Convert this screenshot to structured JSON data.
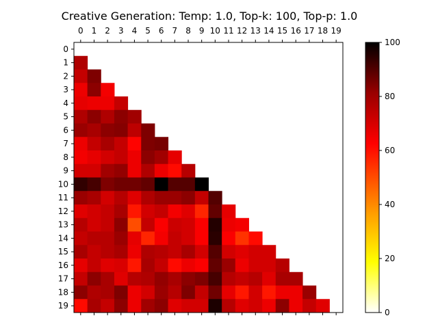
{
  "chart_data": {
    "type": "heatmap",
    "title": "Creative Generation: Temp: 1.0, Top-k: 100, Top-p: 1.0",
    "xlabel": "",
    "ylabel": "",
    "x_categories": [
      "0",
      "1",
      "2",
      "3",
      "4",
      "5",
      "6",
      "7",
      "8",
      "9",
      "10",
      "11",
      "12",
      "13",
      "14",
      "15",
      "16",
      "17",
      "18",
      "19"
    ],
    "y_categories": [
      "0",
      "1",
      "2",
      "3",
      "4",
      "5",
      "6",
      "7",
      "8",
      "9",
      "10",
      "11",
      "12",
      "13",
      "14",
      "15",
      "16",
      "17",
      "18",
      "19"
    ],
    "lower_triangular": true,
    "colormap": "hot_r",
    "colorbar": {
      "min": 0,
      "max": 100,
      "ticks": [
        "0",
        "20",
        "40",
        "60",
        "80",
        "100"
      ]
    },
    "x_axis_position": "top",
    "grid": false,
    "values": [
      [],
      [
        75
      ],
      [
        72,
        82
      ],
      [
        66,
        80,
        65
      ],
      [
        67,
        66,
        66,
        72
      ],
      [
        75,
        80,
        75,
        80,
        77
      ],
      [
        78,
        76,
        80,
        81,
        73,
        82
      ],
      [
        66,
        72,
        76,
        72,
        63,
        82,
        83
      ],
      [
        65,
        67,
        70,
        72,
        66,
        80,
        77,
        67
      ],
      [
        70,
        70,
        77,
        79,
        66,
        75,
        66,
        62,
        74
      ],
      [
        93,
        90,
        82,
        84,
        84,
        86,
        100,
        88,
        88,
        100
      ],
      [
        78,
        76,
        70,
        74,
        68,
        75,
        78,
        78,
        80,
        72,
        88
      ],
      [
        68,
        70,
        72,
        76,
        60,
        70,
        72,
        65,
        68,
        58,
        86,
        67
      ],
      [
        74,
        70,
        72,
        80,
        52,
        72,
        64,
        71,
        70,
        64,
        95,
        66,
        65
      ],
      [
        72,
        74,
        74,
        78,
        67,
        58,
        65,
        72,
        70,
        64,
        94,
        64,
        56,
        62
      ],
      [
        76,
        72,
        74,
        76,
        66,
        75,
        74,
        72,
        76,
        70,
        88,
        70,
        68,
        70,
        70
      ],
      [
        67,
        72,
        68,
        69,
        60,
        76,
        72,
        62,
        66,
        64,
        86,
        78,
        66,
        70,
        70,
        74
      ],
      [
        72,
        80,
        76,
        68,
        74,
        75,
        79,
        76,
        80,
        82,
        90,
        74,
        72,
        74,
        68,
        76,
        76
      ],
      [
        80,
        75,
        76,
        82,
        66,
        70,
        78,
        74,
        82,
        72,
        84,
        67,
        60,
        70,
        60,
        66,
        66,
        78
      ],
      [
        62,
        76,
        72,
        80,
        66,
        77,
        80,
        68,
        70,
        70,
        96,
        74,
        68,
        70,
        66,
        80,
        66,
        72,
        68
      ]
    ]
  }
}
